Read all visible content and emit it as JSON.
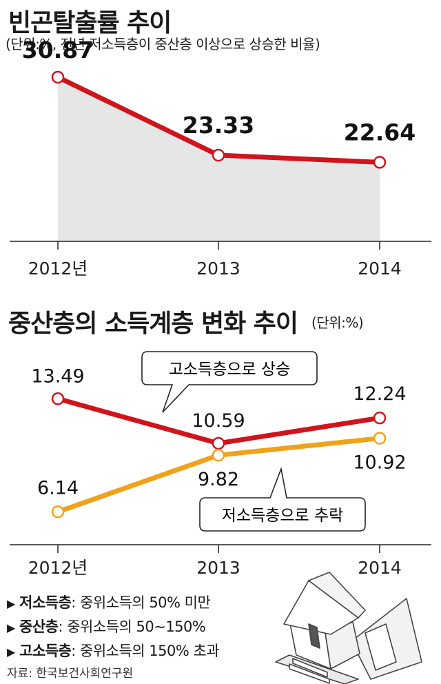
{
  "chart_data": [
    {
      "type": "area",
      "title": "빈곤탈출률 추이",
      "subtitle": "(단위:%, 전년 저소득층이 중산층 이상으로 상승한 비율)",
      "categories": [
        "2012년",
        "2013",
        "2014"
      ],
      "values": [
        30.87,
        23.33,
        22.64
      ],
      "value_labels": [
        "30.87",
        "23.33",
        "22.64"
      ],
      "ylim": [
        15,
        33
      ],
      "grid": false,
      "color": "#d0141c"
    },
    {
      "type": "line",
      "title": "중산층의 소득계층 변화 추이",
      "subtitle": "(단위:%)",
      "categories": [
        "2012년",
        "2013",
        "2014"
      ],
      "series": [
        {
          "key": "upper",
          "values": [
            13.49,
            10.59,
            12.24
          ],
          "labels": [
            "13.49",
            "10.59",
            "12.24"
          ],
          "color": "#d0141c"
        },
        {
          "key": "lower",
          "values": [
            6.14,
            9.82,
            10.92
          ],
          "labels": [
            "6.14",
            "9.82",
            "10.92"
          ],
          "color": "#f0a21a"
        }
      ],
      "annotations": [
        "고소득층으로 상승",
        "저소득층으로 추락"
      ],
      "ylim": [
        4,
        17
      ],
      "grid": false
    }
  ],
  "legend": [
    {
      "term": "저소득층",
      "desc": "중위소득의 50% 미만"
    },
    {
      "term": "중산층",
      "desc": "중위소득의 50∼150%"
    },
    {
      "term": "고소득층",
      "desc": "중위소득의 150% 초과"
    }
  ],
  "source": "자료: 한국보건사회연구원",
  "icons": {
    "house": "falling-house-icon",
    "bullet": "triangle-bullet-icon"
  }
}
